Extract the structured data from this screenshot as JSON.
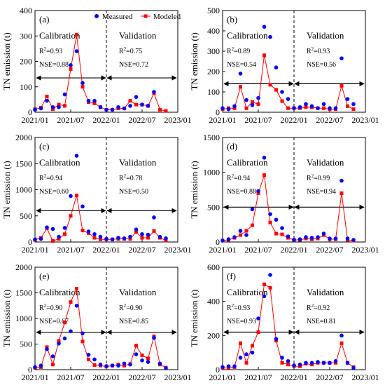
{
  "figure": {
    "ylabel": "TN emission (t)",
    "xtick_labels": [
      "2021/01",
      "2021/07",
      "2022/01",
      "2022/07",
      "2023/01"
    ],
    "legend": {
      "measured": "Measured",
      "modeled": "Modeled",
      "measured_color": "#0000ff",
      "modeled_color": "#ff0000"
    },
    "section_labels": {
      "calibration": "Calibration",
      "validation": "Validation"
    }
  },
  "chart_data": [
    {
      "type": "line",
      "panel_label": "(a)",
      "ylim": [
        0,
        400
      ],
      "yticks": [
        0,
        100,
        200,
        300,
        400
      ],
      "divider": 12,
      "arrow_y": 135,
      "legend": true,
      "calibration": {
        "r2_label": "R",
        "r2_value": "=0.93",
        "nse": "NSE=0.88"
      },
      "validation": {
        "r2_label": "R",
        "r2_value": "=0.75",
        "nse": "NSE=0.72"
      },
      "x": [
        0,
        1,
        2,
        3,
        4,
        5,
        6,
        7,
        8,
        9,
        10,
        11,
        12,
        13,
        14,
        15,
        16,
        17,
        18,
        19,
        20,
        21,
        22,
        23
      ],
      "series": [
        {
          "name": "Measured",
          "values": [
            10,
            15,
            45,
            20,
            20,
            70,
            185,
            240,
            115,
            45,
            45,
            20,
            10,
            10,
            20,
            15,
            25,
            60,
            30,
            25,
            80,
            null,
            null,
            null
          ]
        },
        {
          "name": "Modeled",
          "values": [
            12,
            18,
            62,
            12,
            30,
            25,
            170,
            305,
            100,
            40,
            35,
            20,
            10,
            10,
            15,
            15,
            45,
            30,
            30,
            25,
            75,
            10,
            5,
            null
          ]
        }
      ]
    },
    {
      "type": "line",
      "panel_label": "(b)",
      "ylim": [
        0,
        500
      ],
      "yticks": [
        0,
        100,
        200,
        300,
        400,
        500
      ],
      "divider": 12,
      "arrow_y": 140,
      "legend": false,
      "calibration": {
        "r2_label": "R",
        "r2_value": "=0.89",
        "nse": "NSE=0.54"
      },
      "validation": {
        "r2_label": "R",
        "r2_value": "=0.93",
        "nse": "NSE=0.56"
      },
      "x": [
        0,
        1,
        2,
        3,
        4,
        5,
        6,
        7,
        8,
        9,
        10,
        11,
        12,
        13,
        14,
        15,
        16,
        17,
        18,
        19,
        20,
        21,
        22,
        23
      ],
      "series": [
        {
          "name": "Measured",
          "values": [
            20,
            15,
            30,
            190,
            60,
            35,
            70,
            420,
            370,
            220,
            100,
            65,
            20,
            25,
            40,
            30,
            20,
            40,
            20,
            20,
            265,
            65,
            40,
            null
          ]
        },
        {
          "name": "Modeled",
          "values": [
            15,
            20,
            20,
            125,
            20,
            50,
            40,
            280,
            135,
            110,
            55,
            20,
            20,
            20,
            25,
            25,
            20,
            20,
            15,
            15,
            130,
            30,
            15,
            null
          ]
        }
      ]
    },
    {
      "type": "line",
      "panel_label": "(c)",
      "ylim": [
        0,
        2000
      ],
      "yticks": [
        0,
        500,
        1000,
        1500,
        2000
      ],
      "divider": 12,
      "arrow_y": 600,
      "legend": false,
      "calibration": {
        "r2_label": "R",
        "r2_value": "=0.94",
        "nse": "NSE=0.60"
      },
      "validation": {
        "r2_label": "R",
        "r2_value": "=0.78",
        "nse": "NSE=0.50"
      },
      "x": [
        0,
        1,
        2,
        3,
        4,
        5,
        6,
        7,
        8,
        9,
        10,
        11,
        12,
        13,
        14,
        15,
        16,
        17,
        18,
        19,
        20,
        21,
        22,
        23
      ],
      "series": [
        {
          "name": "Measured",
          "values": [
            50,
            60,
            280,
            250,
            100,
            270,
            880,
            1650,
            680,
            200,
            150,
            100,
            60,
            50,
            80,
            70,
            100,
            240,
            150,
            140,
            470,
            100,
            70,
            null
          ]
        },
        {
          "name": "Modeled",
          "values": [
            40,
            80,
            260,
            20,
            60,
            150,
            500,
            890,
            220,
            170,
            80,
            50,
            50,
            50,
            60,
            60,
            60,
            190,
            80,
            80,
            210,
            80,
            30,
            null
          ]
        }
      ]
    },
    {
      "type": "line",
      "panel_label": "(d)",
      "ylim": [
        0,
        1500
      ],
      "yticks": [
        0,
        500,
        1000,
        1500
      ],
      "divider": 12,
      "arrow_y": 500,
      "legend": false,
      "calibration": {
        "r2_label": "R",
        "r2_value": "=0.94",
        "nse": "NSE=0.88"
      },
      "validation": {
        "r2_label": "R",
        "r2_value": "=0.99",
        "nse": "NSE=0.94"
      },
      "x": [
        0,
        1,
        2,
        3,
        4,
        5,
        6,
        7,
        8,
        9,
        10,
        11,
        12,
        13,
        14,
        15,
        16,
        17,
        18,
        19,
        20,
        21,
        22,
        23
      ],
      "series": [
        {
          "name": "Measured",
          "values": [
            20,
            40,
            70,
            160,
            100,
            470,
            730,
            1210,
            400,
            320,
            200,
            80,
            30,
            40,
            70,
            60,
            70,
            120,
            50,
            50,
            880,
            50,
            30,
            null
          ]
        },
        {
          "name": "Modeled",
          "values": [
            20,
            30,
            60,
            100,
            160,
            240,
            700,
            960,
            280,
            120,
            110,
            60,
            30,
            30,
            50,
            40,
            50,
            100,
            40,
            40,
            700,
            30,
            20,
            null
          ]
        }
      ]
    },
    {
      "type": "line",
      "panel_label": "(e)",
      "ylim": [
        0,
        2000
      ],
      "yticks": [
        0,
        500,
        1000,
        1500,
        2000
      ],
      "divider": 12,
      "arrow_y": 730,
      "legend": false,
      "calibration": {
        "r2_label": "R",
        "r2_value": "=0.90",
        "nse": "NSE=0.67"
      },
      "validation": {
        "r2_label": "R",
        "r2_value": "=0.90",
        "nse": "NSE=0.85"
      },
      "x": [
        0,
        1,
        2,
        3,
        4,
        5,
        6,
        7,
        8,
        9,
        10,
        11,
        12,
        13,
        14,
        15,
        16,
        17,
        18,
        19,
        20,
        21,
        22,
        23
      ],
      "series": [
        {
          "name": "Measured",
          "values": [
            50,
            80,
            400,
            260,
            510,
            610,
            750,
            1250,
            710,
            290,
            200,
            100,
            70,
            80,
            80,
            120,
            100,
            300,
            180,
            150,
            620,
            120,
            30,
            null
          ]
        },
        {
          "name": "Modeled",
          "values": [
            40,
            50,
            440,
            100,
            560,
            920,
            1320,
            1580,
            550,
            200,
            90,
            80,
            60,
            80,
            100,
            80,
            110,
            470,
            280,
            220,
            650,
            100,
            40,
            null
          ]
        }
      ]
    },
    {
      "type": "line",
      "panel_label": "(f)",
      "ylim": [
        0,
        600
      ],
      "yticks": [
        0,
        200,
        400,
        600
      ],
      "divider": 12,
      "arrow_y": 220,
      "legend": false,
      "calibration": {
        "r2_label": "R",
        "r2_value": "=0.93",
        "nse": "NSE=0.93"
      },
      "validation": {
        "r2_label": "R",
        "r2_value": "=0.92",
        "nse": "NSE=0.81"
      },
      "x": [
        0,
        1,
        2,
        3,
        4,
        5,
        6,
        7,
        8,
        9,
        10,
        11,
        12,
        13,
        14,
        15,
        16,
        17,
        18,
        19,
        20,
        21,
        22,
        23
      ],
      "series": [
        {
          "name": "Measured",
          "values": [
            15,
            20,
            20,
            70,
            90,
            100,
            300,
            430,
            555,
            180,
            70,
            50,
            25,
            30,
            40,
            40,
            45,
            40,
            40,
            50,
            200,
            40,
            10,
            null
          ]
        },
        {
          "name": "Modeled",
          "values": [
            10,
            10,
            15,
            155,
            40,
            140,
            220,
            500,
            480,
            170,
            40,
            30,
            20,
            20,
            35,
            30,
            40,
            40,
            40,
            40,
            155,
            40,
            15,
            null
          ]
        }
      ]
    }
  ]
}
